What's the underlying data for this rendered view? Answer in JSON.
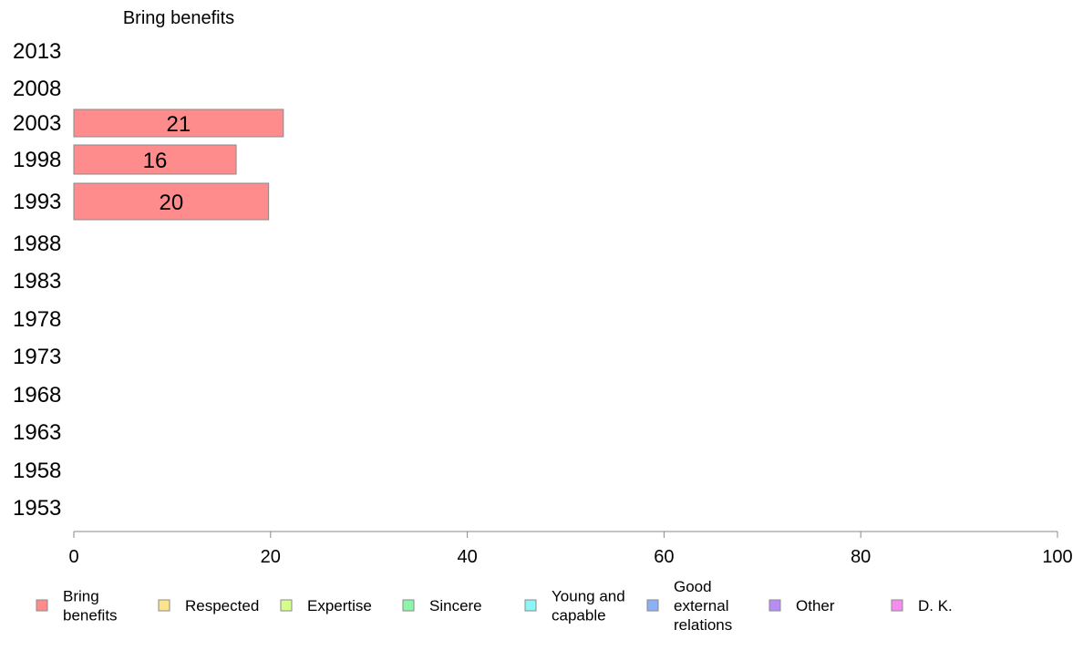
{
  "chart_data": {
    "type": "bar",
    "orientation": "horizontal",
    "title": "Bring benefits",
    "xlabel": "",
    "ylabel": "",
    "xlim": [
      0,
      100
    ],
    "x_ticks": [
      0,
      20,
      40,
      60,
      80,
      100
    ],
    "grid": false,
    "categories": [
      "2013",
      "2008",
      "2003",
      "1998",
      "1993",
      "1988",
      "1983",
      "1978",
      "1973",
      "1968",
      "1963",
      "1958",
      "1953"
    ],
    "series": [
      {
        "name": "Bring benefits",
        "color": "#ff8c8c",
        "values": [
          null,
          null,
          21.3,
          16.5,
          19.8,
          null,
          null,
          null,
          null,
          null,
          null,
          null,
          null
        ],
        "labels": [
          "",
          "",
          "21",
          "16",
          "20",
          "",
          "",
          "",
          "",
          "",
          "",
          "",
          ""
        ]
      }
    ],
    "legend": {
      "placement": "bottom",
      "items": [
        {
          "lines": [
            "Bring",
            "benefits"
          ],
          "color": "#ff8c8c"
        },
        {
          "lines": [
            "Respected"
          ],
          "color": "#ffe38c"
        },
        {
          "lines": [
            "Expertise"
          ],
          "color": "#d4ff8c"
        },
        {
          "lines": [
            "Sincere"
          ],
          "color": "#8cf5a8"
        },
        {
          "lines": [
            "Young and",
            "capable"
          ],
          "color": "#8cf5f5"
        },
        {
          "lines": [
            "Good",
            "external",
            "relations"
          ],
          "color": "#8cb0f5"
        },
        {
          "lines": [
            "Other"
          ],
          "color": "#b88cf5"
        },
        {
          "lines": [
            "D. K."
          ],
          "color": "#f58cf0"
        }
      ]
    }
  }
}
